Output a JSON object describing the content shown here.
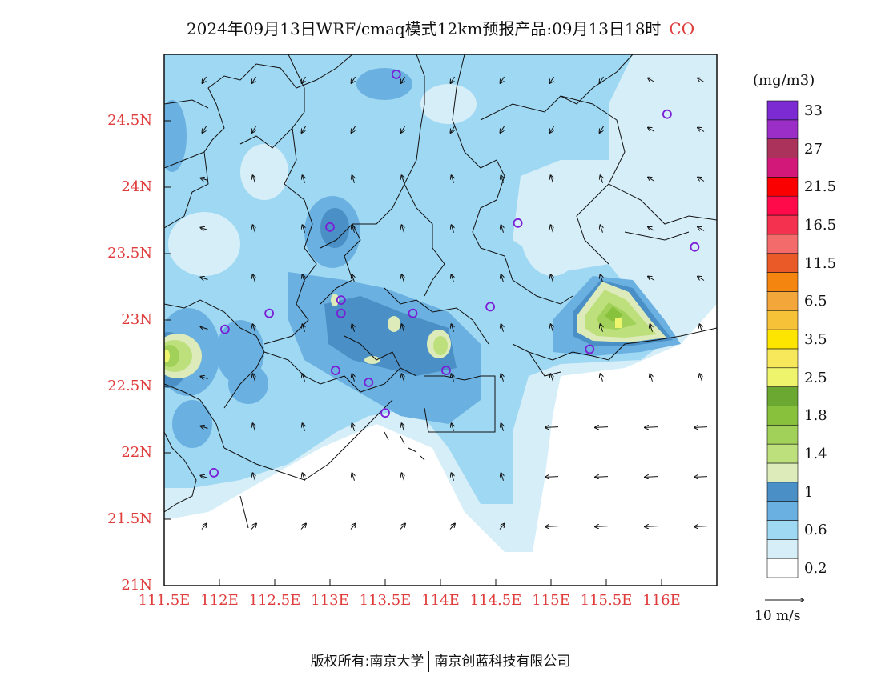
{
  "title": {
    "main": "2024年09月13日WRF/cmaq模式12km预报产品:09月13日18时",
    "species": "CO"
  },
  "map": {
    "lon_range": [
      111.5,
      116.5
    ],
    "lat_range": [
      21,
      25
    ],
    "lat_ticks": [
      {
        "value": 24.5,
        "label": "24.5N"
      },
      {
        "value": 24.0,
        "label": "24N"
      },
      {
        "value": 23.5,
        "label": "23.5N"
      },
      {
        "value": 23.0,
        "label": "23N"
      },
      {
        "value": 22.5,
        "label": "22.5N"
      },
      {
        "value": 22.0,
        "label": "22N"
      },
      {
        "value": 21.5,
        "label": "21.5N"
      },
      {
        "value": 21.0,
        "label": "21N"
      }
    ],
    "lon_ticks": [
      {
        "value": 111.5,
        "label": "111.5E"
      },
      {
        "value": 112.0,
        "label": "112E"
      },
      {
        "value": 112.5,
        "label": "112.5E"
      },
      {
        "value": 113.0,
        "label": "113E"
      },
      {
        "value": 113.5,
        "label": "113.5E"
      },
      {
        "value": 114.0,
        "label": "114E"
      },
      {
        "value": 114.5,
        "label": "114.5E"
      },
      {
        "value": 115.0,
        "label": "115E"
      },
      {
        "value": 115.5,
        "label": "115.5E"
      },
      {
        "value": 116.0,
        "label": "116E"
      }
    ],
    "station_markers": [
      {
        "lon": 113.6,
        "lat": 24.85
      },
      {
        "lon": 116.05,
        "lat": 24.55
      },
      {
        "lon": 113.0,
        "lat": 23.7
      },
      {
        "lon": 114.7,
        "lat": 23.73
      },
      {
        "lon": 116.3,
        "lat": 23.55
      },
      {
        "lon": 112.45,
        "lat": 23.05
      },
      {
        "lon": 113.1,
        "lat": 23.15
      },
      {
        "lon": 113.1,
        "lat": 23.05
      },
      {
        "lon": 113.75,
        "lat": 23.05
      },
      {
        "lon": 114.45,
        "lat": 23.1
      },
      {
        "lon": 112.05,
        "lat": 22.93
      },
      {
        "lon": 115.35,
        "lat": 22.78
      },
      {
        "lon": 113.05,
        "lat": 22.62
      },
      {
        "lon": 113.35,
        "lat": 22.53
      },
      {
        "lon": 114.05,
        "lat": 22.62
      },
      {
        "lon": 113.5,
        "lat": 22.3
      },
      {
        "lon": 111.95,
        "lat": 21.85
      }
    ]
  },
  "colorbar": {
    "unit": "(mg/m3)",
    "colors": [
      "#ffffff",
      "#d6eef8",
      "#9fd8f3",
      "#6ab0e0",
      "#4a8fc6",
      "#dcebb9",
      "#bde07c",
      "#a2d15a",
      "#88c23c",
      "#6aa832",
      "#eef56d",
      "#f6e85a",
      "#fde500",
      "#f6c338",
      "#f3a73a",
      "#f4860f",
      "#ea5a29",
      "#f46b6b",
      "#f4324f",
      "#fe0a4a",
      "#fb0000",
      "#d21879",
      "#ab325a",
      "#9a2ec7",
      "#7c2ad1"
    ],
    "labels": [
      {
        "index": 1,
        "text": "0.2"
      },
      {
        "index": 3,
        "text": "0.6"
      },
      {
        "index": 5,
        "text": "1"
      },
      {
        "index": 7,
        "text": "1.4"
      },
      {
        "index": 9,
        "text": "1.8"
      },
      {
        "index": 11,
        "text": "2.5"
      },
      {
        "index": 13,
        "text": "3.5"
      },
      {
        "index": 15,
        "text": "6.5"
      },
      {
        "index": 17,
        "text": "11.5"
      },
      {
        "index": 19,
        "text": "16.5"
      },
      {
        "index": 21,
        "text": "21.5"
      },
      {
        "index": 23,
        "text": "27"
      },
      {
        "index": 25,
        "text": "33"
      }
    ]
  },
  "wind_key": "10 m/s",
  "footer": {
    "copyright": "版权所有:南京大学",
    "company": "南京创蓝科技有限公司"
  }
}
